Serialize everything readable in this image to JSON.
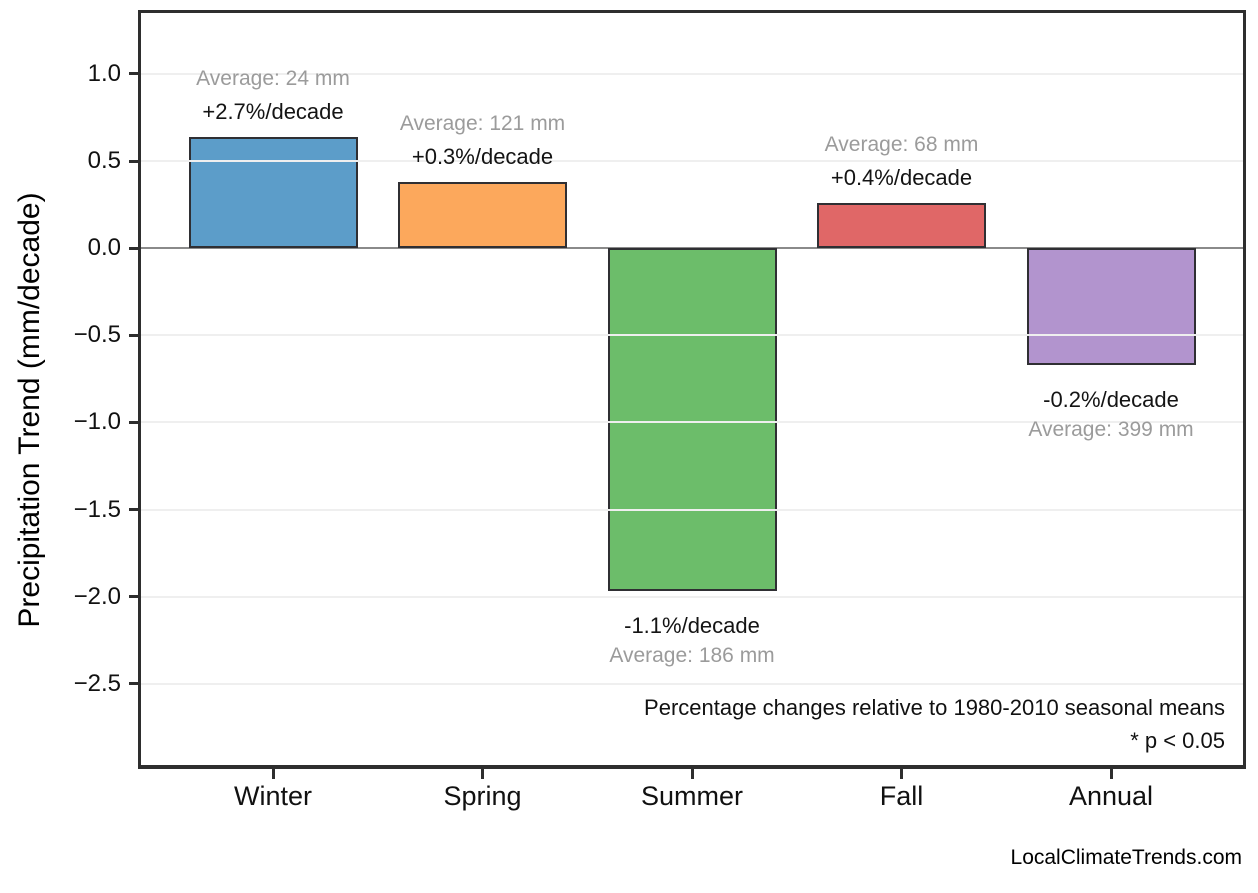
{
  "chart_data": {
    "type": "bar",
    "categories": [
      "Winter",
      "Spring",
      "Summer",
      "Fall",
      "Annual"
    ],
    "values": [
      0.64,
      0.38,
      -1.97,
      0.26,
      -0.67
    ],
    "bar_colors": [
      "#5C9DC9",
      "#FCA85C",
      "#6CBD6A",
      "#E06767",
      "#B294CE"
    ],
    "bar_edge_color": "#2f2f33",
    "annotations": [
      {
        "pct": "+2.7%/decade",
        "avg": "Average: 24 mm"
      },
      {
        "pct": "+0.3%/decade",
        "avg": "Average: 121 mm"
      },
      {
        "pct": "-1.1%/decade",
        "avg": "Average: 186 mm"
      },
      {
        "pct": "+0.4%/decade",
        "avg": "Average: 68 mm"
      },
      {
        "pct": "-0.2%/decade",
        "avg": "Average: 399 mm"
      }
    ],
    "ylabel": "Precipitation Trend (mm/decade)",
    "ytick_values": [
      1.0,
      0.5,
      0.0,
      -0.5,
      -1.0,
      -1.5,
      -2.0,
      -2.5
    ],
    "ytick_labels": [
      "1.0",
      "0.5",
      "0.0",
      "−0.5",
      "−1.0",
      "−1.5",
      "−2.0",
      "−2.5"
    ],
    "ylim": [
      -2.96,
      1.35
    ],
    "grid": true,
    "grid_color": "#efefef",
    "zero_line_color": "#8a8a8a",
    "notes": [
      "Percentage changes relative to 1980-2010 seasonal means",
      "* p < 0.05"
    ],
    "footer": "LocalClimateTrends.com"
  }
}
